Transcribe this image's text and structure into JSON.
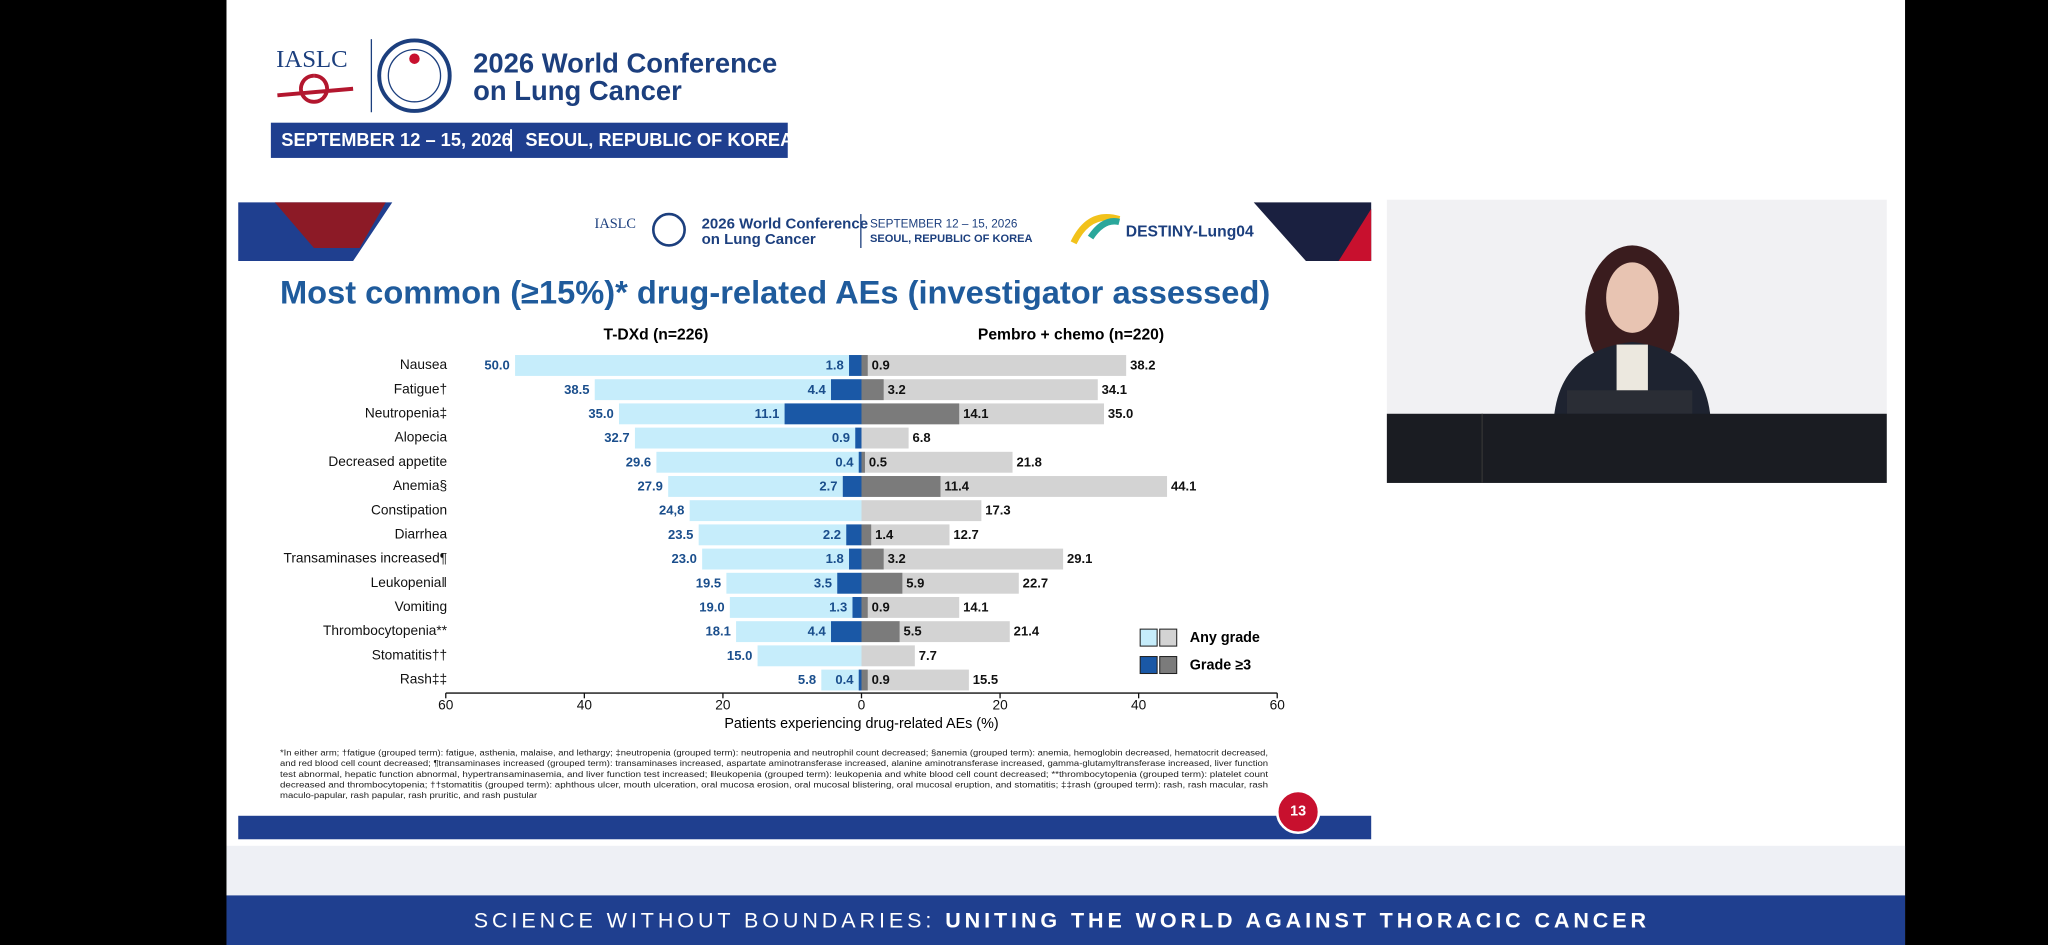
{
  "header": {
    "society": "IASLC",
    "conference_line1": "2026 World Conference",
    "conference_line2": "on Lung Cancer",
    "dates": "SEPTEMBER 12 – 15, 2026",
    "location": "SEOUL, REPUBLIC OF KOREA"
  },
  "slide_header": {
    "society": "IASLC",
    "conference_line1": "2026 World Conference",
    "conference_line2": "on Lung Cancer",
    "dates": "SEPTEMBER 12 – 15, 2026",
    "location": "SEOUL, REPUBLIC OF KOREA",
    "study": "DESTINY-Lung04"
  },
  "chart_data": {
    "type": "butterfly-bar",
    "title": "Most common (≥15%)* drug-related AEs (investigator assessed)",
    "categories": [
      "Nausea",
      "Fatigue†",
      "Neutropenia‡",
      "Alopecia",
      "Decreased appetite",
      "Anemia§",
      "Constipation",
      "Diarrhea",
      "Transaminases increased¶",
      "Leukopenia‖",
      "Vomiting",
      "Thrombocytopenia**",
      "Stomatitis††",
      "Rash‡‡"
    ],
    "arms": [
      {
        "name": "T-DXd (n=226)",
        "direction": "left"
      },
      {
        "name": "Pembro + chemo (n=220)",
        "direction": "right"
      }
    ],
    "legend": {
      "entries": [
        "Any grade",
        "Grade ≥3"
      ],
      "position": "lower right"
    },
    "series": [
      {
        "arm": 0,
        "legend_entry": 0,
        "color": "#c6edfb",
        "values": [
          50.0,
          38.5,
          35.0,
          32.7,
          29.6,
          27.9,
          24.8,
          23.5,
          23.0,
          19.5,
          19.0,
          18.1,
          15.0,
          5.8
        ],
        "value_labels": [
          "50.0",
          "38.5",
          "35.0",
          "32.7",
          "29.6",
          "27.9",
          "24,8",
          "23.5",
          "23.0",
          "19.5",
          "19.0",
          "18.1",
          "15.0",
          "5.8"
        ]
      },
      {
        "arm": 0,
        "legend_entry": 1,
        "color": "#1a58a6",
        "values": [
          1.8,
          4.4,
          11.1,
          0.9,
          0.4,
          2.7,
          null,
          2.2,
          1.8,
          3.5,
          1.3,
          4.4,
          null,
          0.4
        ],
        "value_labels": [
          "1.8",
          "4.4",
          "11.1",
          "0.9",
          "0.4",
          "2.7",
          null,
          "2.2",
          "1.8",
          "3.5",
          "1.3",
          "4.4",
          null,
          "0.4"
        ]
      },
      {
        "arm": 1,
        "legend_entry": 0,
        "color": "#d3d3d3",
        "values": [
          38.2,
          34.1,
          35.0,
          6.8,
          21.8,
          44.1,
          17.3,
          12.7,
          29.1,
          22.7,
          14.1,
          21.4,
          7.7,
          15.5
        ],
        "value_labels": [
          "38.2",
          "34.1",
          "35.0",
          "6.8",
          "21.8",
          "44.1",
          "17.3",
          "12.7",
          "29.1",
          "22.7",
          "14.1",
          "21.4",
          "7.7",
          "15.5"
        ]
      },
      {
        "arm": 1,
        "legend_entry": 1,
        "color": "#7b7b7b",
        "values": [
          0.9,
          3.2,
          14.1,
          null,
          0.5,
          11.4,
          null,
          1.4,
          3.2,
          5.9,
          0.9,
          5.5,
          null,
          0.9
        ],
        "value_labels": [
          "0.9",
          "3.2",
          "14.1",
          null,
          "0.5",
          "11.4",
          null,
          "1.4",
          "3.2",
          "5.9",
          "0.9",
          "5.5",
          null,
          "0.9"
        ]
      }
    ],
    "xlim": [
      -60,
      60
    ],
    "xticks": [
      {
        "value": -60,
        "label": "60"
      },
      {
        "value": -40,
        "label": "40"
      },
      {
        "value": -20,
        "label": "20"
      },
      0,
      20,
      40,
      60
    ],
    "x_label": "Patients experiencing drug-related AEs (%)",
    "footnote": [
      "*In either arm; †fatigue (grouped term): fatigue, asthenia, malaise, and lethargy; ‡neutropenia (grouped term): neutropenia and neutrophil count decreased; §anemia (grouped term): anemia, hemoglobin decreased, hematocrit decreased,",
      "and red blood cell count decreased; ¶transaminases increased (grouped term): transaminases increased, aspartate aminotransferase increased, alanine aminotransferase increased, gamma-glutamyltransferase increased, liver function",
      "test abnormal, hepatic function abnormal, hypertransaminasemia, and liver function test increased; ‖leukopenia (grouped term): leukopenia and white blood cell count decreased; **thrombocytopenia (grouped term): platelet count",
      "decreased and thrombocytopenia; ††stomatitis (grouped term): aphthous ulcer, mouth ulceration, oral mucosa erosion, oral mucosal blistering, oral mucosal eruption, and stomatitis; ‡‡rash (grouped term): rash, rash macular, rash",
      "maculo-papular, rash papular, rash pruritic, and rash pustular"
    ]
  },
  "slide_number": "13",
  "banner": {
    "lead": "SCIENCE WITHOUT BOUNDARIES:",
    "tagline": "UNITING THE WORLD AGAINST THORACIC CANCER"
  }
}
